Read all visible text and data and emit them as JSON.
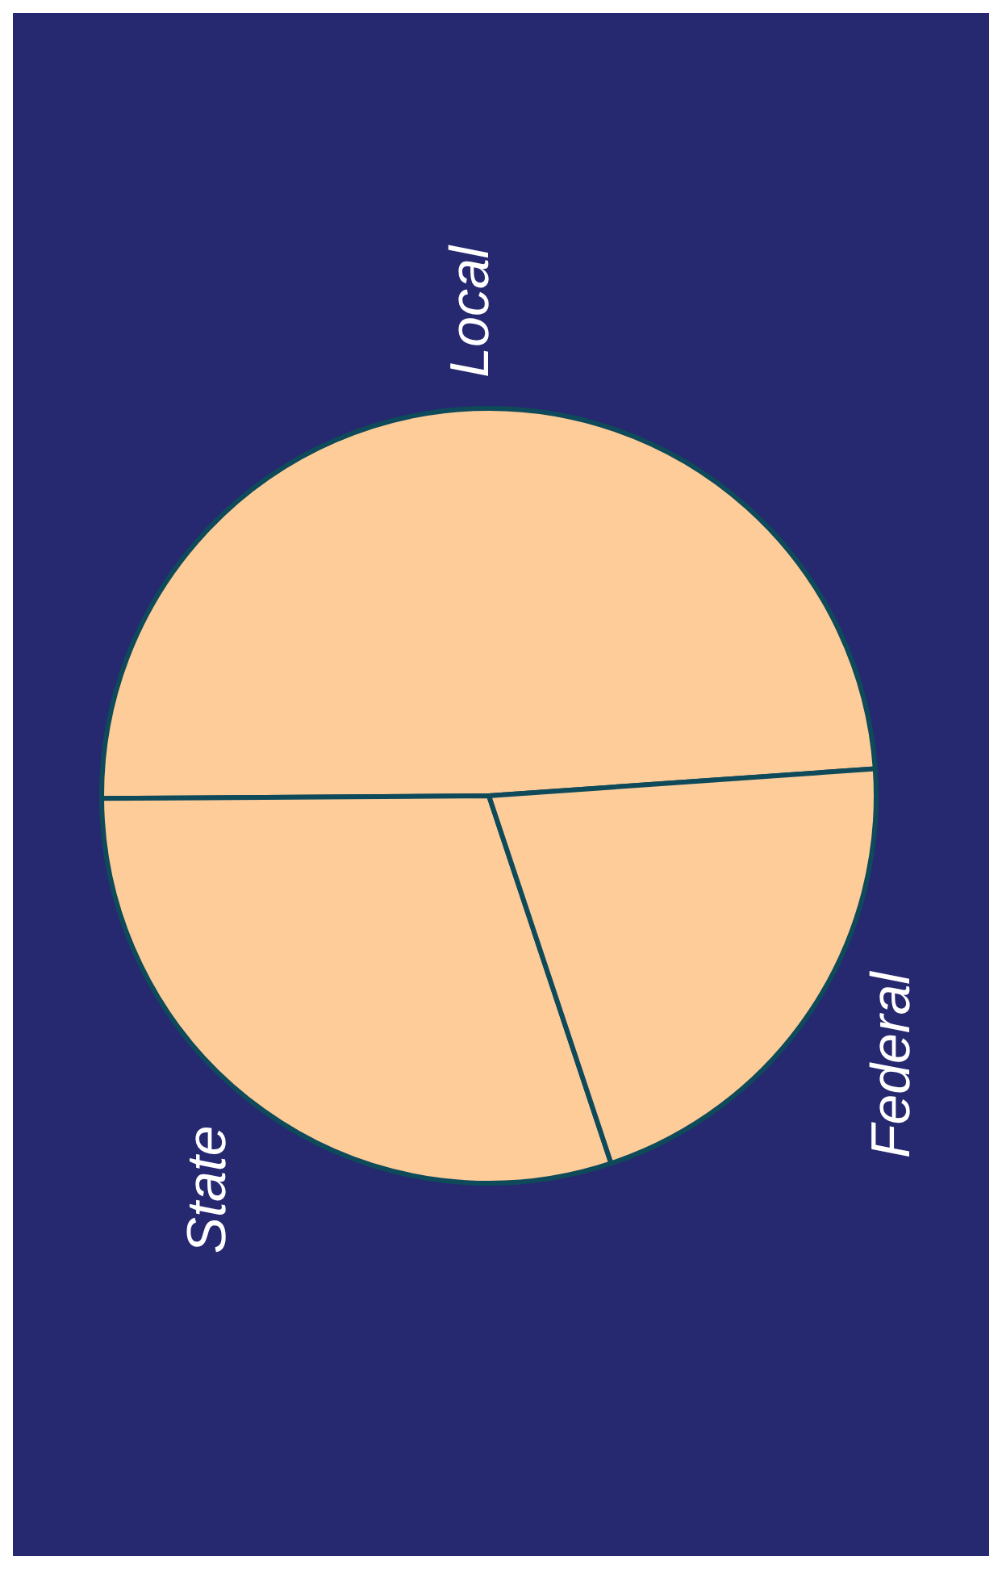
{
  "chart_data": {
    "type": "pie",
    "categories": [
      "Local",
      "State",
      "Federal"
    ],
    "values": [
      49,
      30,
      21
    ],
    "colors": [
      "#fecc99",
      "#fecc99",
      "#fecc99"
    ],
    "legend": false
  }
}
